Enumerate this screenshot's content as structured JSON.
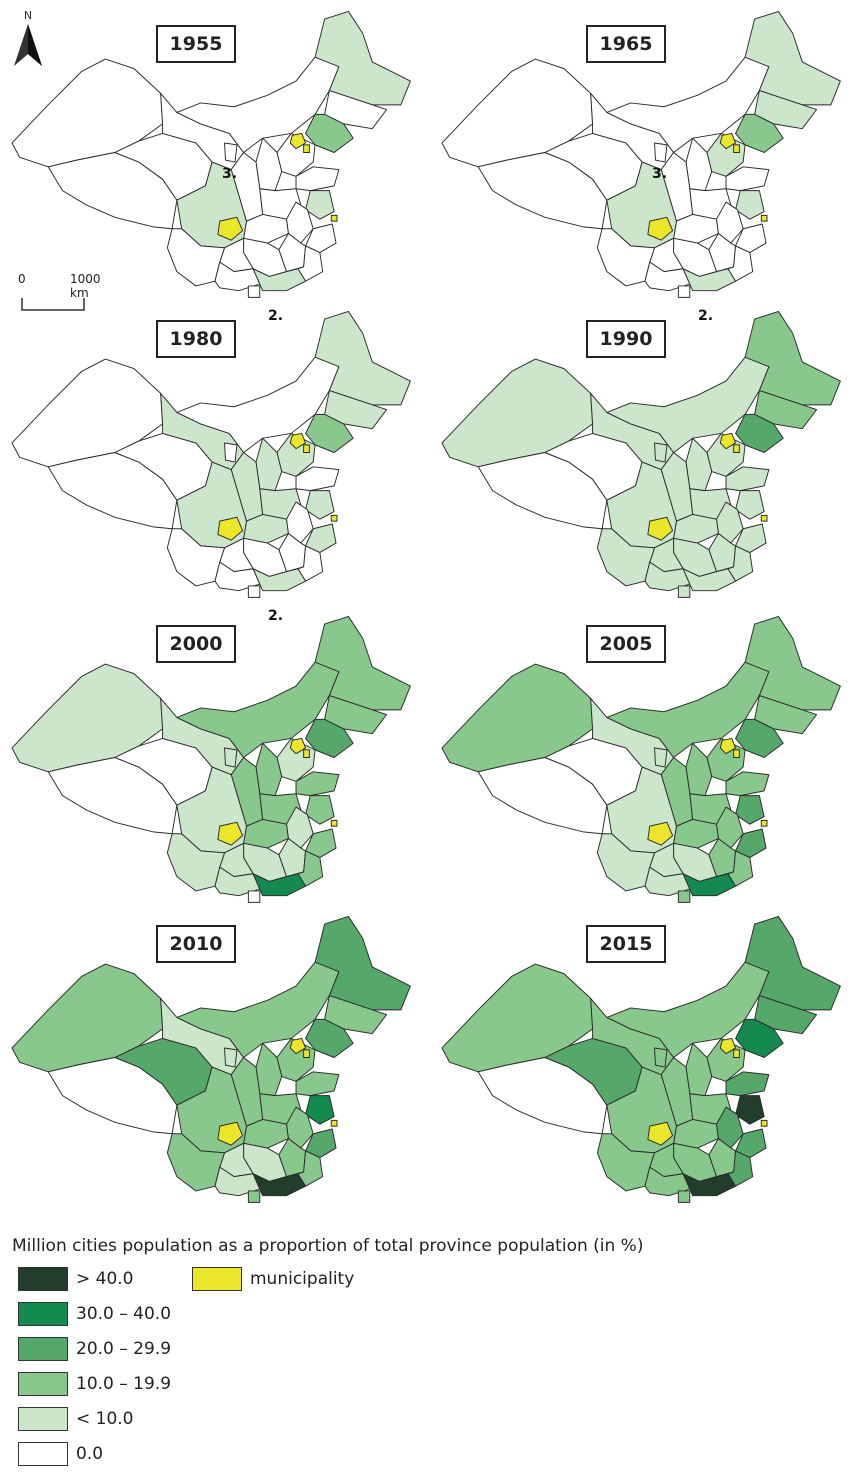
{
  "north_label": "N",
  "scale": {
    "start": "0",
    "end": "1000 km"
  },
  "panel_labels": {
    "hainan": "2.",
    "ningxia": "3."
  },
  "colors": {
    "c0": "#ffffff",
    "c1": "#cce6cc",
    "c2": "#88c88c",
    "c3": "#55a86a",
    "c4": "#148a50",
    "c5": "#223d2c",
    "muni": "#ece62a",
    "border": "#2a2a2a"
  },
  "maps": [
    {
      "year": "1955",
      "fills": {
        "heilongjiang": 1,
        "liaoning": 2,
        "hebei": 0,
        "jiangsu": 1,
        "sichuan": 1,
        "guangdong": 1
      }
    },
    {
      "year": "1965",
      "fills": {
        "heilongjiang": 1,
        "jilin": 1,
        "liaoning": 2,
        "hebei": 1,
        "jiangsu": 1,
        "sichuan": 1,
        "guangdong": 1,
        "shandong": 0
      }
    },
    {
      "year": "1980",
      "fills": {
        "heilongjiang": 1,
        "jilin": 1,
        "liaoning": 2,
        "hebei": 1,
        "shanxi": 1,
        "shaanxi": 1,
        "gansu": 1,
        "henan": 1,
        "hubei": 1,
        "sichuan": 1,
        "jiangsu": 1,
        "zhejiang": 1,
        "guangdong": 1
      }
    },
    {
      "year": "1990",
      "fills": {
        "heilongjiang": 2,
        "jilin": 2,
        "liaoning": 3,
        "xinjiang": 1,
        "innermongolia": 1,
        "gansu": 1,
        "ningxia": 1,
        "shaanxi": 1,
        "shanxi": 1,
        "hebei": 1,
        "shandong": 1,
        "henan": 1,
        "hubei": 1,
        "hunan": 1,
        "sichuan": 1,
        "guizhou": 1,
        "yunnan": 1,
        "guangxi": 1,
        "guangdong": 1,
        "jiangsu": 1,
        "anhui": 1,
        "jiangxi": 1,
        "zhejiang": 1,
        "fujian": 1,
        "hainan": 1
      }
    },
    {
      "year": "2000",
      "fills": {
        "heilongjiang": 2,
        "jilin": 2,
        "liaoning": 3,
        "xinjiang": 1,
        "innermongolia": 2,
        "gansu": 1,
        "ningxia": 1,
        "shaanxi": 2,
        "shanxi": 2,
        "hebei": 1,
        "shandong": 2,
        "henan": 2,
        "hubei": 2,
        "hunan": 1,
        "sichuan": 1,
        "guizhou": 1,
        "yunnan": 1,
        "guangxi": 1,
        "guangdong": 4,
        "jiangsu": 2,
        "anhui": 1,
        "jiangxi": 1,
        "zhejiang": 2,
        "fujian": 2,
        "hainan": 0
      }
    },
    {
      "year": "2005",
      "fills": {
        "heilongjiang": 2,
        "jilin": 2,
        "liaoning": 3,
        "xinjiang": 2,
        "innermongolia": 2,
        "gansu": 1,
        "ningxia": 1,
        "shaanxi": 2,
        "shanxi": 2,
        "hebei": 2,
        "shandong": 2,
        "henan": 2,
        "hubei": 2,
        "hunan": 1,
        "sichuan": 1,
        "guizhou": 1,
        "yunnan": 1,
        "guangxi": 1,
        "guangdong": 4,
        "jiangsu": 3,
        "anhui": 2,
        "jiangxi": 2,
        "zhejiang": 3,
        "fujian": 2,
        "hainan": 2
      }
    },
    {
      "year": "2010",
      "fills": {
        "heilongjiang": 3,
        "jilin": 2,
        "liaoning": 3,
        "xinjiang": 2,
        "innermongolia": 2,
        "qinghai": 3,
        "gansu": 1,
        "ningxia": 1,
        "shaanxi": 2,
        "shanxi": 2,
        "hebei": 2,
        "shandong": 2,
        "henan": 2,
        "hubei": 2,
        "hunan": 1,
        "sichuan": 2,
        "guizhou": 1,
        "yunnan": 2,
        "guangxi": 1,
        "guangdong": 5,
        "jiangsu": 4,
        "anhui": 2,
        "jiangxi": 2,
        "zhejiang": 3,
        "fujian": 2,
        "hainan": 2
      }
    },
    {
      "year": "2015",
      "fills": {
        "heilongjiang": 3,
        "jilin": 3,
        "liaoning": 4,
        "xinjiang": 2,
        "innermongolia": 2,
        "qinghai": 3,
        "gansu": 2,
        "ningxia": 2,
        "shaanxi": 2,
        "shanxi": 2,
        "hebei": 2,
        "shandong": 3,
        "henan": 2,
        "hubei": 2,
        "hunan": 2,
        "sichuan": 2,
        "guizhou": 2,
        "yunnan": 2,
        "guangxi": 2,
        "guangdong": 5,
        "jiangsu": 5,
        "anhui": 3,
        "jiangxi": 2,
        "zhejiang": 3,
        "fujian": 3,
        "hainan": 2
      }
    }
  ],
  "legend": {
    "title": "Million cities population as a proportion of total province population (in %)",
    "classes": [
      {
        "label": "> 40.0",
        "color": "#223d2c"
      },
      {
        "label": "30.0 – 40.0",
        "color": "#148a50"
      },
      {
        "label": "20.0 – 29.9",
        "color": "#55a86a"
      },
      {
        "label": "10.0 – 19.9",
        "color": "#88c88c"
      },
      {
        "label": "< 10.0",
        "color": "#cce6cc"
      },
      {
        "label": "0.0",
        "color": "#ffffff"
      }
    ],
    "municipality": {
      "label": "municipality",
      "color": "#ece62a"
    }
  }
}
